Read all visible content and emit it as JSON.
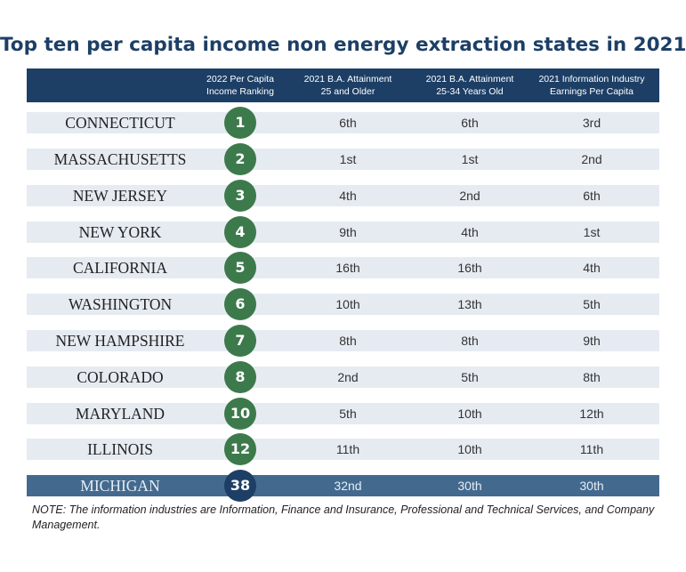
{
  "title": "Top ten per capita income non energy extraction states in 2021",
  "headers": [
    {
      "line1": "2022 Per Capita",
      "line2": "Income Ranking"
    },
    {
      "line1": "2021 B.A. Attainment",
      "line2": "25 and Older"
    },
    {
      "line1": "2021 B.A. Attainment",
      "line2": "25-34 Years Old"
    },
    {
      "line1": "2021 Information Industry",
      "line2": "Earnings Per Capita"
    }
  ],
  "rows": [
    {
      "state": "CONNECTICUT",
      "rank": "1",
      "ba25": "6th",
      "ba2534": "6th",
      "info": "3rd"
    },
    {
      "state": "MASSACHUSETTS",
      "rank": "2",
      "ba25": "1st",
      "ba2534": "1st",
      "info": "2nd"
    },
    {
      "state": "NEW JERSEY",
      "rank": "3",
      "ba25": "4th",
      "ba2534": "2nd",
      "info": "6th"
    },
    {
      "state": "NEW YORK",
      "rank": "4",
      "ba25": "9th",
      "ba2534": "4th",
      "info": "1st"
    },
    {
      "state": "CALIFORNIA",
      "rank": "5",
      "ba25": "16th",
      "ba2534": "16th",
      "info": "4th"
    },
    {
      "state": "WASHINGTON",
      "rank": "6",
      "ba25": "10th",
      "ba2534": "13th",
      "info": "5th"
    },
    {
      "state": "NEW HAMPSHIRE",
      "rank": "7",
      "ba25": "8th",
      "ba2534": "8th",
      "info": "9th"
    },
    {
      "state": "COLORADO",
      "rank": "8",
      "ba25": "2nd",
      "ba2534": "5th",
      "info": "8th"
    },
    {
      "state": "MARYLAND",
      "rank": "10",
      "ba25": "5th",
      "ba2534": "10th",
      "info": "12th"
    },
    {
      "state": "ILLINOIS",
      "rank": "12",
      "ba25": "11th",
      "ba2534": "10th",
      "info": "11th"
    },
    {
      "state": "MICHIGAN",
      "rank": "38",
      "ba25": "32nd",
      "ba2534": "30th",
      "info": "30th"
    }
  ],
  "note": "NOTE: The information industries are Information, Finance and Insurance, Professional and Technical Services, and Company Management.",
  "colors": {
    "navy": "#1d3f66",
    "row_bg": "#e6ebf2",
    "highlight_bg": "#436a8e",
    "rank_green": "#3c7a4b"
  }
}
